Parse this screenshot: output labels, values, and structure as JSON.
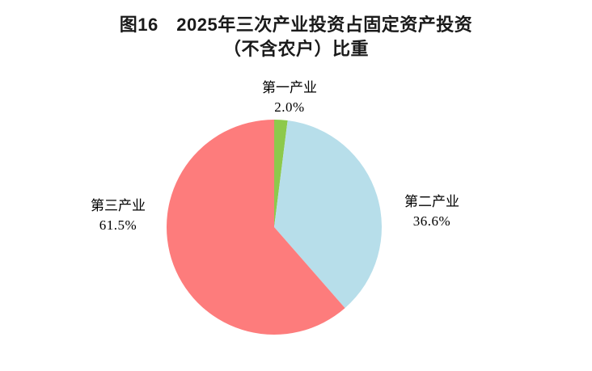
{
  "page": {
    "background": "#ffffff"
  },
  "chart_data": {
    "type": "pie",
    "title_line1": "图16　2025年三次产业投资占固定资产投资",
    "title_line2": "（不含农户）比重",
    "start_angle_deg": 0,
    "direction": "clockwise",
    "legend_position": "labels-around-pie",
    "slices": [
      {
        "label": "第一产业",
        "value": 2.0,
        "display": "2.0%",
        "color": "#8DC94C"
      },
      {
        "label": "第二产业",
        "value": 36.6,
        "display": "36.6%",
        "color": "#B7DEEA"
      },
      {
        "label": "第三产业",
        "value": 61.5,
        "display": "61.5%",
        "color": "#FD7C7C"
      }
    ]
  }
}
